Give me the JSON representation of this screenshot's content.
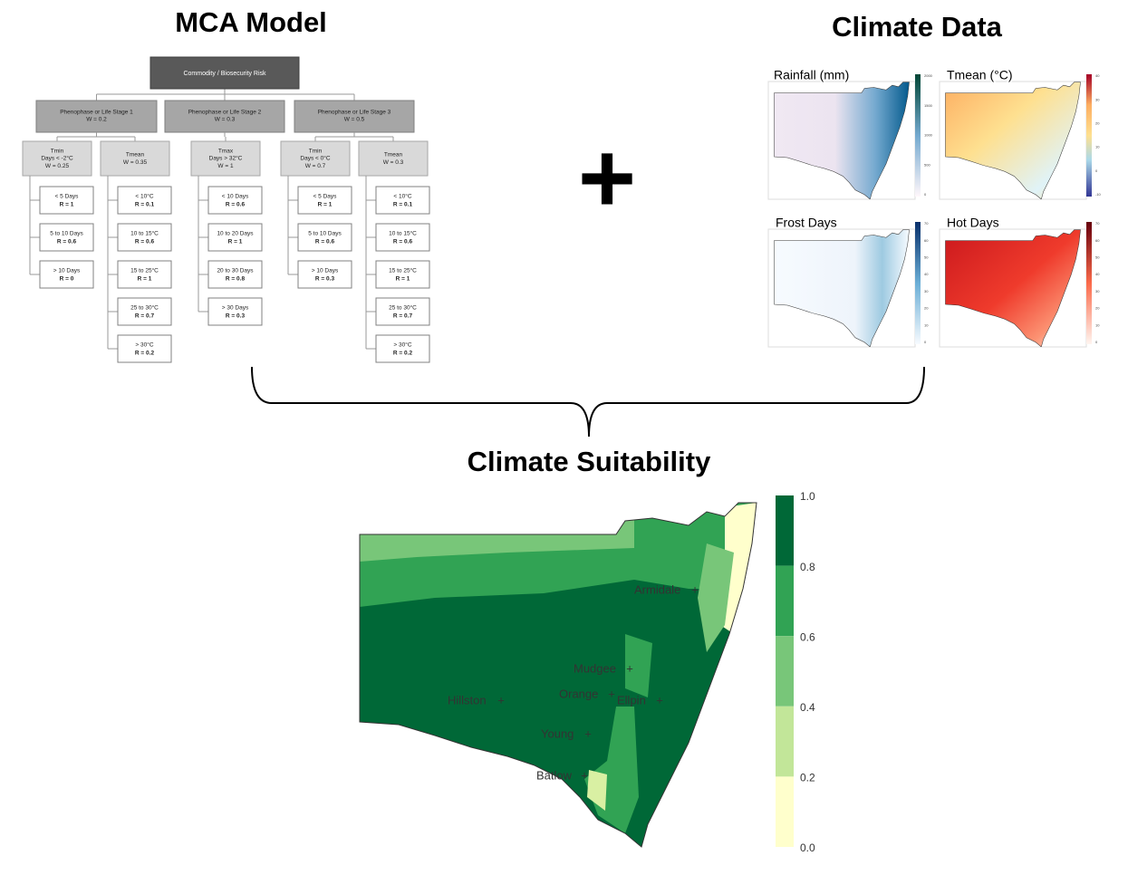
{
  "mca_title": "MCA Model",
  "plus": "+",
  "climate_title": "Climate Data",
  "suitability_title": "Climate Suitability",
  "tree": {
    "root": "Commodity / Biosecurity Risk",
    "stages": [
      {
        "label": "Phenophase or Life Stage 1",
        "weight": "W = 0.2",
        "criteria": [
          {
            "name": "Tmin",
            "condition": "Days < -2°C",
            "weight": "W = 0.25",
            "classes": [
              {
                "range": "< 5 Days",
                "rating": "R = 1"
              },
              {
                "range": "5 to 10 Days",
                "rating": "R = 0.6"
              },
              {
                "range": "> 10 Days",
                "rating": "R = 0"
              }
            ]
          },
          {
            "name": "Tmean",
            "weight": "W = 0.35",
            "classes": [
              {
                "range": "< 10°C",
                "rating": "R = 0.1"
              },
              {
                "range": "10 to 15°C",
                "rating": "R = 0.6"
              },
              {
                "range": "15 to 25°C",
                "rating": "R = 1"
              },
              {
                "range": "25 to 30°C",
                "rating": "R = 0.7"
              },
              {
                "range": "> 30°C",
                "rating": "R = 0.2"
              }
            ]
          }
        ]
      },
      {
        "label": "Phenophase or Life Stage 2",
        "weight": "W = 0.3",
        "criteria": [
          {
            "name": "Tmax",
            "condition": "Days > 32°C",
            "weight": "W = 1",
            "classes": [
              {
                "range": "< 10 Days",
                "rating": "R = 0.6"
              },
              {
                "range": "10 to 20 Days",
                "rating": "R = 1"
              },
              {
                "range": "20 to 30 Days",
                "rating": "R = 0.8"
              },
              {
                "range": "> 30 Days",
                "rating": "R = 0.3"
              }
            ]
          }
        ]
      },
      {
        "label": "Phenophase or Life Stage 3",
        "weight": "W = 0.5",
        "criteria": [
          {
            "name": "Tmin",
            "condition": "Days < 0°C",
            "weight": "W = 0.7",
            "classes": [
              {
                "range": "< 5 Days",
                "rating": "R = 1"
              },
              {
                "range": "5 to 10 Days",
                "rating": "R = 0.6"
              },
              {
                "range": "> 10 Days",
                "rating": "R = 0.3"
              }
            ]
          },
          {
            "name": "Tmean",
            "weight": "W = 0.3",
            "classes": [
              {
                "range": "< 10°C",
                "rating": "R = 0.1"
              },
              {
                "range": "10 to 15°C",
                "rating": "R = 0.6"
              },
              {
                "range": "15 to 25°C",
                "rating": "R = 1"
              },
              {
                "range": "25 to 30°C",
                "rating": "R = 0.7"
              },
              {
                "range": "> 30°C",
                "rating": "R = 0.2"
              }
            ]
          }
        ]
      }
    ]
  },
  "climate_maps": [
    {
      "title": "Rainfall (mm)",
      "scale": [
        "2000",
        "1500",
        "1000",
        "500",
        "0"
      ]
    },
    {
      "title": "Tmean (°C)",
      "scale": [
        "40",
        "30",
        "20",
        "10",
        "0",
        "-10"
      ]
    },
    {
      "title": "Frost Days",
      "scale": [
        "70",
        "60",
        "50",
        "40",
        "30",
        "20",
        "10",
        "0"
      ]
    },
    {
      "title": "Hot Days",
      "scale": [
        "70",
        "60",
        "50",
        "40",
        "30",
        "20",
        "10",
        "0"
      ]
    }
  ],
  "towns": [
    "Armidale",
    "Mudgee",
    "Hillston",
    "Orange",
    "Ellpin",
    "Young",
    "Batlow"
  ],
  "legend": [
    "1.0",
    "0.8",
    "0.6",
    "0.4",
    "0.2",
    "0.0"
  ]
}
